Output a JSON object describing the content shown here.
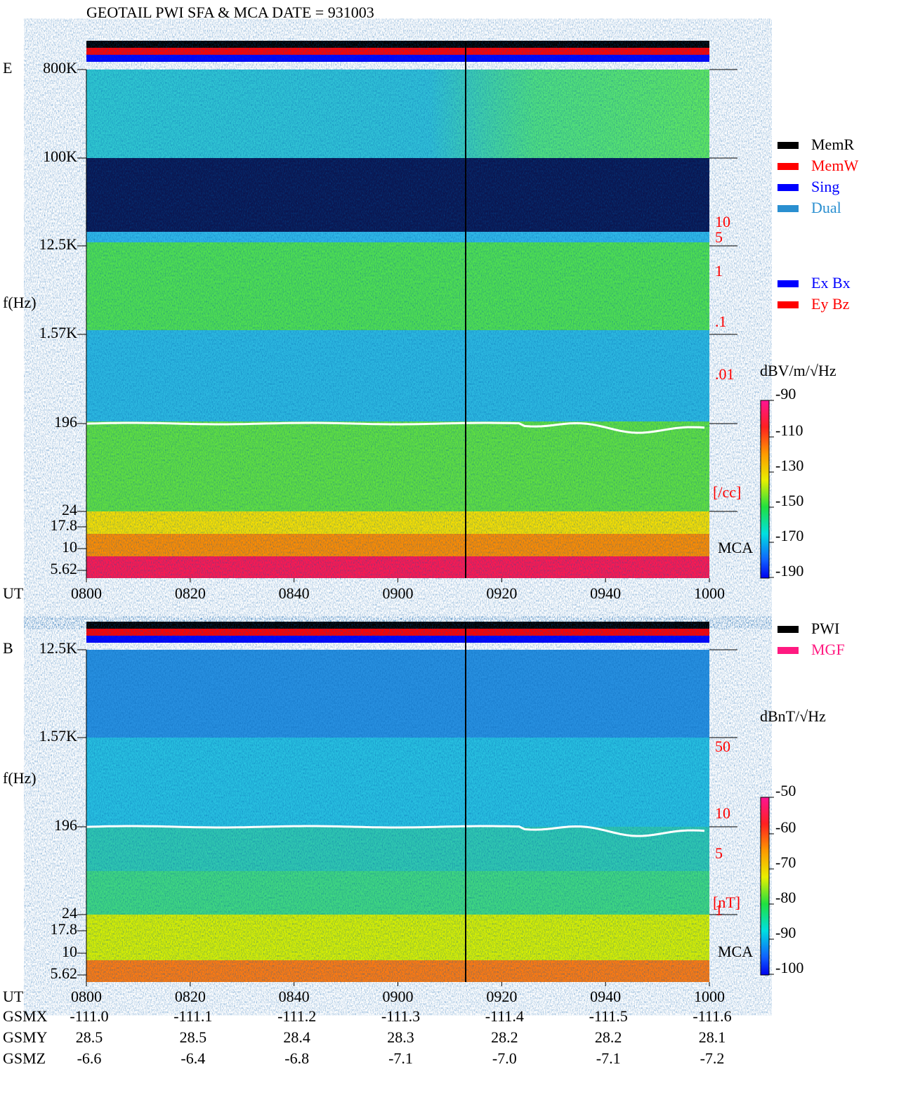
{
  "header": {
    "title": "GEOTAIL  PWI SFA & MCA   DATE = 931003"
  },
  "legend": {
    "mode": [
      "MemR",
      "MemW",
      "Sing",
      "Dual"
    ],
    "antenna": [
      "Ex Bx",
      "Ey Bz"
    ],
    "source": [
      "PWI",
      "MGF"
    ]
  },
  "panels": [
    {
      "label": "E",
      "axis_label": "f(Hz)",
      "freq_ticks": [
        "800K",
        "100K",
        "12.5K",
        "1.57K",
        "196",
        "24",
        "17.8",
        "10",
        "5.62"
      ],
      "right_ticks": [
        "10",
        "5",
        "1",
        ".1",
        ".01"
      ],
      "right_unit": "[/cc]",
      "mca": "MCA",
      "time_label": "UT",
      "times": [
        "0800",
        "0820",
        "0840",
        "0900",
        "0920",
        "0940",
        "1000"
      ],
      "colorbar": {
        "unit": "dBV/m/√Hz",
        "ticks": [
          -90,
          -110,
          -130,
          -150,
          -170,
          -190
        ]
      }
    },
    {
      "label": "B",
      "axis_label": "f(Hz)",
      "freq_ticks": [
        "12.5K",
        "1.57K",
        "196",
        "24",
        "17.8",
        "10",
        "5.62"
      ],
      "right_ticks": [
        "50",
        "10",
        "5",
        "1"
      ],
      "right_unit": "[nT]",
      "mca": "MCA",
      "time_label": "UT",
      "times": [
        "0800",
        "0820",
        "0840",
        "0900",
        "0920",
        "0940",
        "1000"
      ],
      "colorbar": {
        "unit": "dBnT/√Hz",
        "ticks": [
          -50,
          -60,
          -70,
          -80,
          -90,
          -100
        ]
      }
    }
  ],
  "orbit": {
    "rows": [
      {
        "label": "GSMX",
        "values": [
          "-111.0",
          "-111.1",
          "-111.2",
          "-111.3",
          "-111.4",
          "-111.5",
          "-111.6"
        ]
      },
      {
        "label": "GSMY",
        "values": [
          "28.5",
          "28.5",
          "28.4",
          "28.3",
          "28.2",
          "28.2",
          "28.1"
        ]
      },
      {
        "label": "GSMZ",
        "values": [
          "-6.6",
          "-6.4",
          "-6.8",
          "-7.1",
          "-7.0",
          "-7.1",
          "-7.2"
        ]
      }
    ]
  }
}
